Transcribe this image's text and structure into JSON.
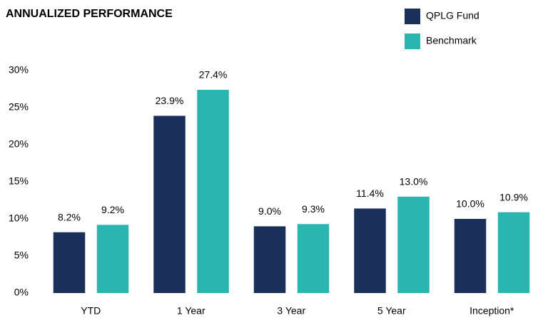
{
  "chart_data": {
    "type": "bar",
    "title": "ANNUALIZED PERFORMANCE",
    "categories": [
      "YTD",
      "1 Year",
      "3 Year",
      "5 Year",
      "Inception*"
    ],
    "series": [
      {
        "name": "QPLG Fund",
        "color": "#1b2f5b",
        "values": [
          8.2,
          23.9,
          9.0,
          11.4,
          10.0
        ],
        "value_labels": [
          "8.2%",
          "23.9%",
          "9.0%",
          "11.4%",
          "10.0%"
        ]
      },
      {
        "name": "Benchmark",
        "color": "#2bb5b0",
        "values": [
          9.2,
          27.4,
          9.3,
          13.0,
          10.9
        ],
        "value_labels": [
          "9.2%",
          "27.4%",
          "9.3%",
          "13.0%",
          "10.9%"
        ]
      }
    ],
    "ylim": [
      0,
      30
    ],
    "yticks": [
      {
        "value": 0,
        "label": "0%"
      },
      {
        "value": 5,
        "label": "5%"
      },
      {
        "value": 10,
        "label": "10%"
      },
      {
        "value": 15,
        "label": "15%"
      },
      {
        "value": 20,
        "label": "20%"
      },
      {
        "value": 25,
        "label": "25%"
      },
      {
        "value": 30,
        "label": "30%"
      }
    ],
    "grid": false,
    "legend": "top-right"
  }
}
